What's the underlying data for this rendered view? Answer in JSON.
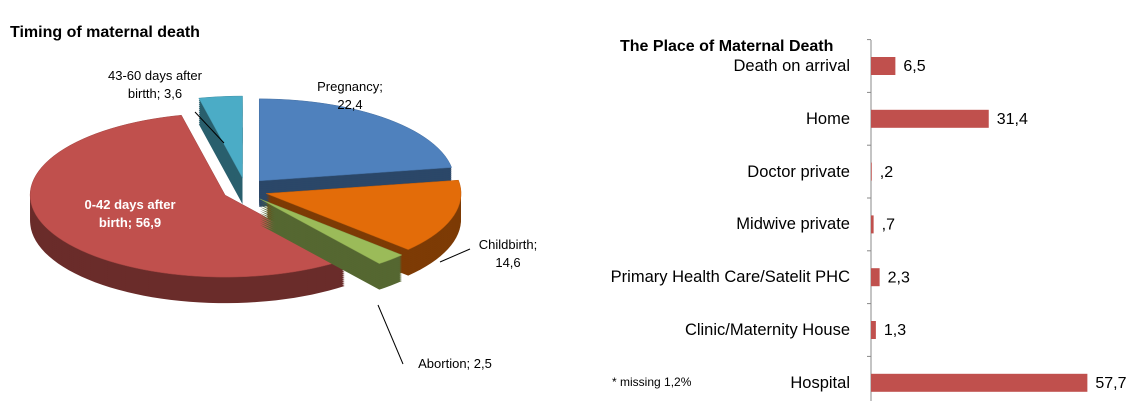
{
  "chart_data": [
    {
      "type": "pie3d",
      "title": "Timing of maternal death",
      "categories": [
        "Pregnancy",
        "Childbirth",
        "Abortion",
        "0-42 days after birth",
        "43-60 days after birtth"
      ],
      "values": [
        22.4,
        14.6,
        2.5,
        56.9,
        3.6
      ],
      "value_labels": [
        "22,4",
        "14,6",
        "2,5",
        "56,9",
        "3,6"
      ],
      "label_separator": ";",
      "colors": [
        "#4f81bd",
        "#e36c09",
        "#9bbb59",
        "#c0504d",
        "#4bacc6"
      ]
    },
    {
      "type": "hbar",
      "title": "The Place of Maternal Death",
      "categories": [
        "Death on arrival",
        "Home",
        "Doctor private",
        "Midwive private",
        "Primary Health Care/Satelit PHC",
        "Clinic/Maternity House",
        "Hospital"
      ],
      "values": [
        6.5,
        31.4,
        0.2,
        0.7,
        2.3,
        1.3,
        57.7
      ],
      "value_labels": [
        "6,5",
        "31,4",
        ",2",
        ",7",
        "2,3",
        "1,3",
        "57,7"
      ],
      "color": "#c0504d",
      "xlim": [
        0,
        60
      ],
      "annotation": "* missing 1,2%"
    }
  ]
}
